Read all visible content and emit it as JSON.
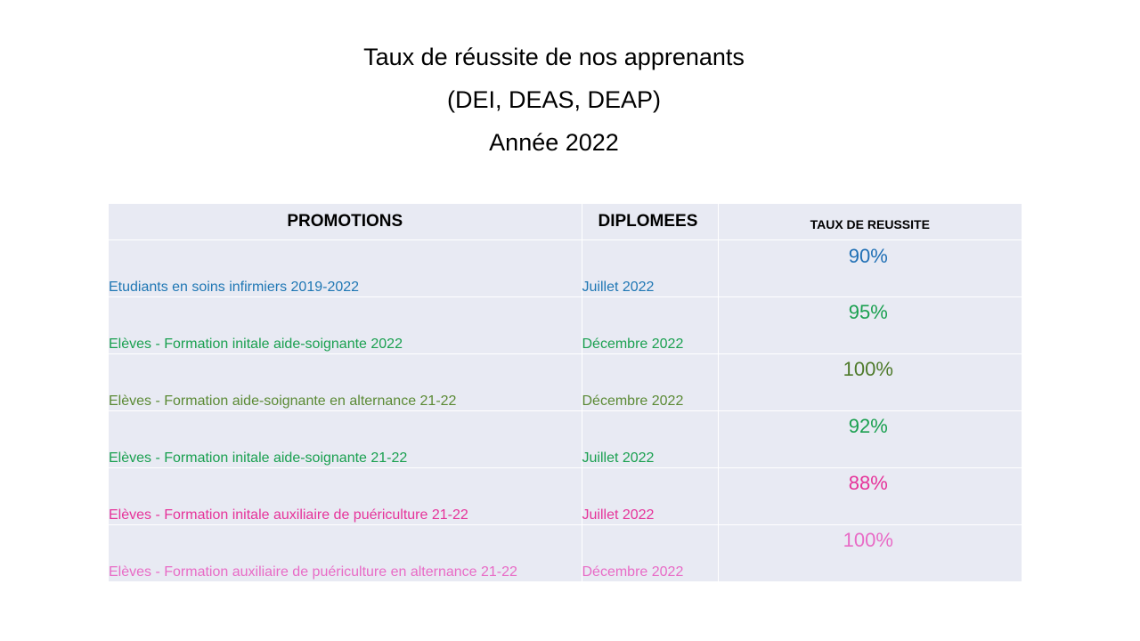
{
  "title": {
    "line1": "Taux de réussite de nos apprenants",
    "line2": "(DEI, DEAS, DEAP)",
    "line3": "Année 2022"
  },
  "table": {
    "headers": {
      "promotions": "PROMOTIONS",
      "diplomees": "DIPLOMEES",
      "taux": "TAUX DE REUSSITE"
    },
    "rows": [
      {
        "promotion": "Etudiants en soins infirmiers 2019-2022",
        "diplomees": "Juillet 2022",
        "taux": "90%",
        "color": "#1f77b4",
        "taux_color": "#1f6fb5"
      },
      {
        "promotion": "Elèves - Formation initale aide-soignante 2022",
        "diplomees": "Décembre 2022",
        "taux": "95%",
        "color": "#1aa050",
        "taux_color": "#1aa050"
      },
      {
        "promotion": "Elèves - Formation  aide-soignante en alternance 21-22",
        "diplomees": "Décembre 2022",
        "taux": "100%",
        "color": "#5b8a35",
        "taux_color": "#4e7a2a"
      },
      {
        "promotion": "Elèves - Formation initale aide-soignante 21-22",
        "diplomees": "Juillet 2022",
        "taux": "92%",
        "color": "#1aa050",
        "taux_color": "#1aa050"
      },
      {
        "promotion": "Elèves - Formation initale auxiliaire de puériculture 21-22",
        "diplomees": "Juillet 2022",
        "taux": "88%",
        "color": "#e6339a",
        "taux_color": "#e6339a"
      },
      {
        "promotion": "Elèves - Formation auxiliaire de puériculture en alternance 21-22",
        "diplomees": "Décembre 2022",
        "taux": "100%",
        "color": "#e86bc6",
        "taux_color": "#e86bc6"
      }
    ]
  }
}
